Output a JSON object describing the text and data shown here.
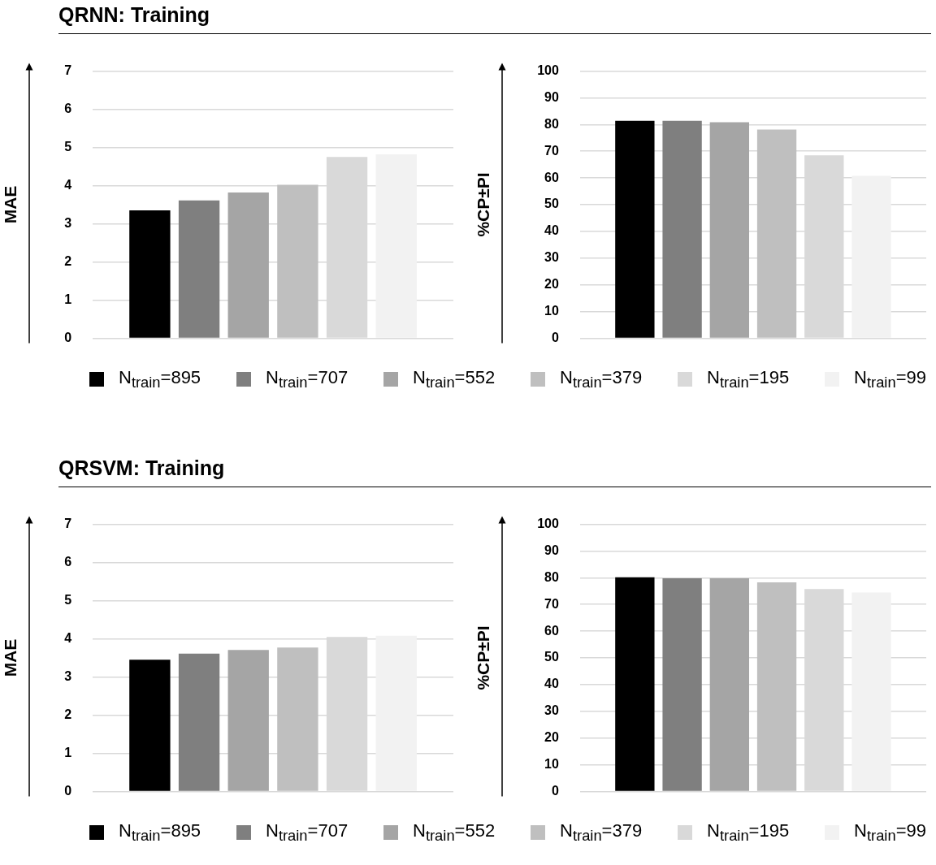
{
  "chart_data": [
    {
      "type": "bar",
      "title": "QRNN: Training",
      "ylabel": "MAE",
      "categories": [
        null
      ],
      "ylim": [
        0,
        7
      ],
      "yticks": [
        0,
        1,
        2,
        3,
        4,
        5,
        6,
        7
      ],
      "grid": "y",
      "legend": "bottom",
      "series": [
        {
          "name": "N$_{train}$=895",
          "color": "#000000",
          "values": [
            3.35
          ]
        },
        {
          "name": "N$_{train}$=707",
          "color": "#7f7f7f",
          "values": [
            3.61
          ]
        },
        {
          "name": "N$_{train}$=552",
          "color": "#a5a5a5",
          "values": [
            3.82
          ]
        },
        {
          "name": "N$_{train}$=379",
          "color": "#bfbfbf",
          "values": [
            4.02
          ]
        },
        {
          "name": "N$_{train}$=195",
          "color": "#d9d9d9",
          "values": [
            4.75
          ]
        },
        {
          "name": "N$_{train}$=99",
          "color": "#f2f2f2",
          "values": [
            4.82
          ]
        }
      ]
    },
    {
      "type": "bar",
      "ylabel": "%CP±PI",
      "categories": [
        null
      ],
      "ylim": [
        0,
        100
      ],
      "yticks": [
        0,
        10,
        20,
        30,
        40,
        50,
        60,
        70,
        80,
        90,
        100
      ],
      "grid": "y",
      "series": [
        {
          "color": "#000000",
          "values": [
            81.4
          ]
        },
        {
          "color": "#7f7f7f",
          "values": [
            81.4
          ]
        },
        {
          "color": "#a5a5a5",
          "values": [
            80.9
          ]
        },
        {
          "color": "#bfbfbf",
          "values": [
            78.1
          ]
        },
        {
          "color": "#d9d9d9",
          "values": [
            68.5
          ]
        },
        {
          "color": "#f2f2f2",
          "values": [
            60.8
          ]
        }
      ]
    },
    {
      "type": "bar",
      "title": "QRSVM: Training",
      "ylabel": "MAE",
      "categories": [
        null
      ],
      "ylim": [
        0,
        7
      ],
      "yticks": [
        0,
        1,
        2,
        3,
        4,
        5,
        6,
        7
      ],
      "grid": "y",
      "legend": "bottom",
      "series": [
        {
          "name": "N$_{train}$=895",
          "color": "#000000",
          "values": [
            3.45
          ]
        },
        {
          "name": "N$_{train}$=707",
          "color": "#7f7f7f",
          "values": [
            3.61
          ]
        },
        {
          "name": "N$_{train}$=552",
          "color": "#a5a5a5",
          "values": [
            3.71
          ]
        },
        {
          "name": "N$_{train}$=379",
          "color": "#bfbfbf",
          "values": [
            3.77
          ]
        },
        {
          "name": "N$_{train}$=195",
          "color": "#d9d9d9",
          "values": [
            4.05
          ]
        },
        {
          "name": "N$_{train}$=99",
          "color": "#f2f2f2",
          "values": [
            4.08
          ]
        }
      ]
    },
    {
      "type": "bar",
      "ylabel": "%CP±PI",
      "categories": [
        null
      ],
      "ylim": [
        0,
        100
      ],
      "yticks": [
        0,
        10,
        20,
        30,
        40,
        50,
        60,
        70,
        80,
        90,
        100
      ],
      "grid": "y",
      "series": [
        {
          "color": "#000000",
          "values": [
            80.2
          ]
        },
        {
          "color": "#7f7f7f",
          "values": [
            79.8
          ]
        },
        {
          "color": "#a5a5a5",
          "values": [
            79.8
          ]
        },
        {
          "color": "#bfbfbf",
          "values": [
            78.3
          ]
        },
        {
          "color": "#d9d9d9",
          "values": [
            75.8
          ]
        },
        {
          "color": "#f2f2f2",
          "values": [
            74.5
          ]
        }
      ]
    }
  ]
}
